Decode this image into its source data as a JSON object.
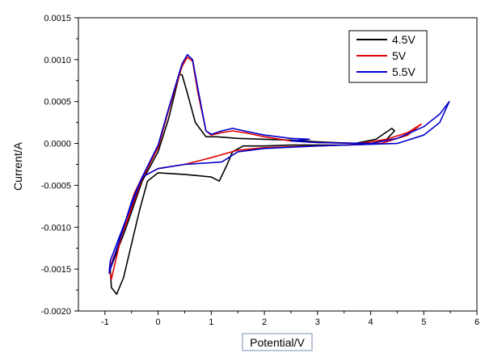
{
  "chart_data": {
    "type": "line",
    "title": "",
    "xlabel": "Potential/V",
    "ylabel": "Current/A",
    "xlim": [
      -1.5,
      6
    ],
    "ylim": [
      -0.002,
      0.0015
    ],
    "x_ticks": [
      -1,
      0,
      1,
      2,
      3,
      4,
      5,
      6
    ],
    "x_tick_labels": [
      "-1",
      "0",
      "1",
      "2",
      "3",
      "4",
      "5",
      "6"
    ],
    "y_ticks": [
      -0.002,
      -0.0015,
      -0.001,
      -0.0005,
      0.0,
      0.0005,
      0.001,
      0.0015
    ],
    "y_tick_labels": [
      "-0.0020",
      "-0.0015",
      "-0.0010",
      "-0.0005",
      "0.0000",
      "0.0005",
      "0.0010",
      "0.0015"
    ],
    "grid": false,
    "legend_position": "top-right",
    "series": [
      {
        "name": "4.5V",
        "color": "#000000",
        "points": [
          [
            -0.9,
            -0.0015
          ],
          [
            -0.6,
            -0.001
          ],
          [
            -0.3,
            -0.00045
          ],
          [
            0.0,
            -0.0001
          ],
          [
            0.2,
            0.0003
          ],
          [
            0.4,
            0.00082
          ],
          [
            0.45,
            0.00082
          ],
          [
            0.55,
            0.0006
          ],
          [
            0.7,
            0.00025
          ],
          [
            0.9,
            8e-05
          ],
          [
            1.1,
            8e-05
          ],
          [
            1.5,
            6e-05
          ],
          [
            2.0,
            5e-05
          ],
          [
            2.5,
            4e-05
          ],
          [
            3.0,
            2e-05
          ],
          [
            3.7,
            0.0
          ],
          [
            4.1,
            5e-05
          ],
          [
            4.4,
            0.00018
          ],
          [
            4.45,
            0.00015
          ],
          [
            4.3,
            5e-05
          ],
          [
            4.0,
            -1e-05
          ],
          [
            3.5,
            -2e-05
          ],
          [
            3.0,
            -2e-05
          ],
          [
            2.5,
            -2e-05
          ],
          [
            2.0,
            -3e-05
          ],
          [
            1.6,
            -3e-05
          ],
          [
            1.4,
            -0.0001
          ],
          [
            1.3,
            -0.00025
          ],
          [
            1.15,
            -0.00045
          ],
          [
            1.0,
            -0.0004
          ],
          [
            0.5,
            -0.00037
          ],
          [
            0.0,
            -0.00035
          ],
          [
            -0.2,
            -0.00045
          ],
          [
            -0.35,
            -0.0008
          ],
          [
            -0.5,
            -0.0012
          ],
          [
            -0.65,
            -0.0016
          ],
          [
            -0.78,
            -0.0018
          ],
          [
            -0.88,
            -0.00172
          ],
          [
            -0.9,
            -0.0015
          ]
        ]
      },
      {
        "name": "5V",
        "color": "#e00000",
        "points": [
          [
            -0.92,
            -0.0015
          ],
          [
            -0.6,
            -0.00095
          ],
          [
            -0.3,
            -0.00042
          ],
          [
            0.0,
            -5e-05
          ],
          [
            0.2,
            0.0004
          ],
          [
            0.45,
            0.00092
          ],
          [
            0.55,
            0.00103
          ],
          [
            0.65,
            0.00098
          ],
          [
            0.75,
            0.0006
          ],
          [
            0.9,
            0.00015
          ],
          [
            1.0,
            0.0001
          ],
          [
            1.2,
            0.00013
          ],
          [
            1.4,
            0.00015
          ],
          [
            1.7,
            0.00012
          ],
          [
            2.0,
            8e-05
          ],
          [
            2.5,
            3e-05
          ],
          [
            3.0,
            1e-05
          ],
          [
            3.8,
            0.0
          ],
          [
            4.3,
            5e-05
          ],
          [
            4.7,
            0.00013
          ],
          [
            4.95,
            0.00023
          ],
          [
            4.7,
            0.0001
          ],
          [
            4.2,
            0.0
          ],
          [
            3.5,
            -2e-05
          ],
          [
            3.0,
            -3e-05
          ],
          [
            2.5,
            -4e-05
          ],
          [
            2.0,
            -5e-05
          ],
          [
            1.5,
            -8e-05
          ],
          [
            1.0,
            -0.00017
          ],
          [
            0.5,
            -0.00025
          ],
          [
            0.0,
            -0.0003
          ],
          [
            -0.3,
            -0.0004
          ],
          [
            -0.45,
            -0.0006
          ],
          [
            -0.65,
            -0.001
          ],
          [
            -0.8,
            -0.0014
          ],
          [
            -0.88,
            -0.00162
          ],
          [
            -0.92,
            -0.0015
          ]
        ]
      },
      {
        "name": "5.5V",
        "color": "#0000cc",
        "points": [
          [
            -0.9,
            -0.0014
          ],
          [
            -0.6,
            -0.0009
          ],
          [
            -0.3,
            -0.0004
          ],
          [
            0.0,
            -2e-05
          ],
          [
            0.2,
            0.00042
          ],
          [
            0.45,
            0.00095
          ],
          [
            0.55,
            0.00106
          ],
          [
            0.65,
            0.001
          ],
          [
            0.75,
            0.00065
          ],
          [
            0.9,
            0.00015
          ],
          [
            1.0,
            0.00011
          ],
          [
            1.2,
            0.00015
          ],
          [
            1.4,
            0.00018
          ],
          [
            1.7,
            0.00014
          ],
          [
            2.0,
            0.0001
          ],
          [
            2.5,
            6e-05
          ],
          [
            2.85,
            5e-05
          ],
          [
            2.5,
            3e-05
          ],
          [
            3.0,
            1e-05
          ],
          [
            4.0,
            0.0
          ],
          [
            4.5,
            6e-05
          ],
          [
            5.0,
            0.0002
          ],
          [
            5.3,
            0.00035
          ],
          [
            5.48,
            0.0005
          ],
          [
            5.3,
            0.00025
          ],
          [
            5.0,
            0.0001
          ],
          [
            4.5,
            0.0
          ],
          [
            4.0,
            -1e-05
          ],
          [
            3.0,
            -3e-05
          ],
          [
            2.0,
            -6e-05
          ],
          [
            1.5,
            -0.0001
          ],
          [
            1.2,
            -0.00022
          ],
          [
            1.0,
            -0.00023
          ],
          [
            0.5,
            -0.00025
          ],
          [
            0.0,
            -0.0003
          ],
          [
            -0.3,
            -0.0004
          ],
          [
            -0.5,
            -0.0007
          ],
          [
            -0.7,
            -0.0011
          ],
          [
            -0.85,
            -0.0014
          ],
          [
            -0.92,
            -0.00155
          ],
          [
            -0.9,
            -0.0014
          ]
        ]
      }
    ]
  }
}
